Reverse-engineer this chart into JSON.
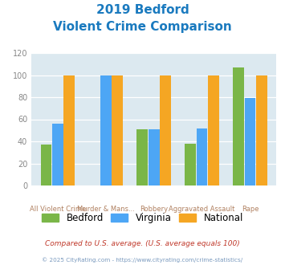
{
  "title_line1": "2019 Bedford",
  "title_line2": "Violent Crime Comparison",
  "title_color": "#1a7abf",
  "cat_top": [
    "",
    "Murder & Mans...",
    "",
    "Aggravated Assault",
    ""
  ],
  "cat_bottom": [
    "All Violent Crime",
    "",
    "Robbery",
    "",
    "Rape"
  ],
  "bedford": [
    37,
    0,
    51,
    38,
    107
  ],
  "virginia": [
    56,
    100,
    51,
    52,
    79
  ],
  "national": [
    100,
    100,
    100,
    100,
    100
  ],
  "bedford_color": "#7ab648",
  "virginia_color": "#4da6f5",
  "national_color": "#f5a623",
  "ylim": [
    0,
    120
  ],
  "yticks": [
    0,
    20,
    40,
    60,
    80,
    100,
    120
  ],
  "plot_bg": "#dce9f0",
  "legend_labels": [
    "Bedford",
    "Virginia",
    "National"
  ],
  "footer1": "Compared to U.S. average. (U.S. average equals 100)",
  "footer2": "© 2025 CityRating.com - https://www.cityrating.com/crime-statistics/",
  "footer1_color": "#c0392b",
  "footer2_color": "#7a9abf",
  "xtick_color": "#b08060"
}
